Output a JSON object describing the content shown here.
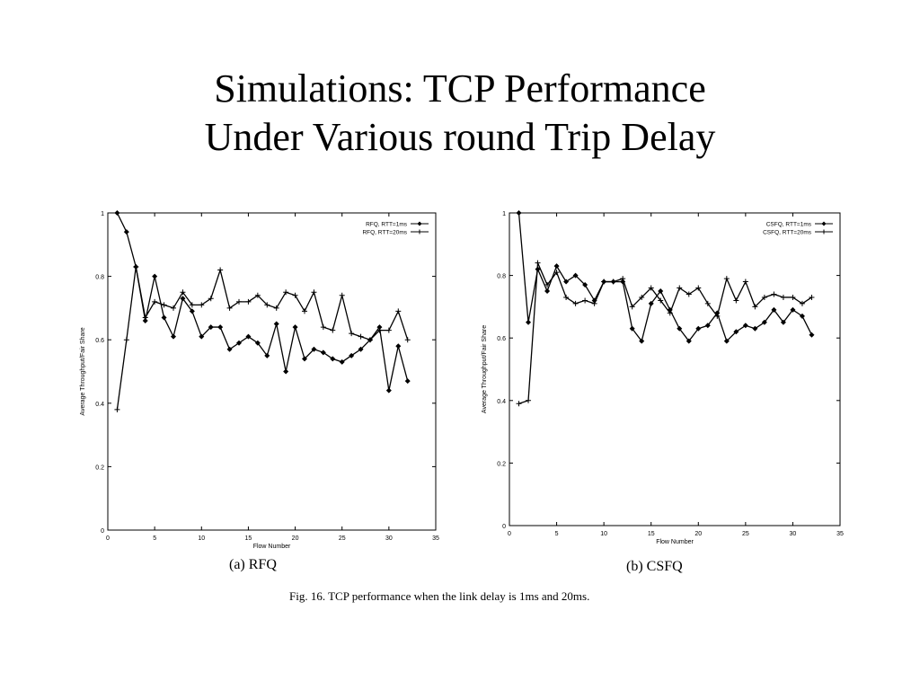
{
  "title": {
    "line1": "Simulations: TCP Performance",
    "line2": "Under Various round Trip Delay"
  },
  "figure_caption": "Fig. 16.  TCP performance when the link delay is 1ms and 20ms.",
  "chart_data": [
    {
      "type": "line",
      "subcaption": "(a) RFQ",
      "xlabel": "Flow Number",
      "ylabel": "Average Throughput/Fair Share",
      "xlim": [
        0,
        35
      ],
      "ylim": [
        0,
        1
      ],
      "xticks": [
        "0",
        "5",
        "10",
        "15",
        "20",
        "25",
        "30",
        "35"
      ],
      "yticks": [
        "0",
        "0.2",
        "0.4",
        "0.6",
        "0.8",
        "1"
      ],
      "legend": "top-right",
      "x": [
        1,
        2,
        3,
        4,
        5,
        6,
        7,
        8,
        9,
        10,
        11,
        12,
        13,
        14,
        15,
        16,
        17,
        18,
        19,
        20,
        21,
        22,
        23,
        24,
        25,
        26,
        27,
        28,
        29,
        30,
        31,
        32
      ],
      "series": [
        {
          "name": "RFQ, RTT=1ms",
          "marker": "diamond",
          "values": [
            1.0,
            0.94,
            0.83,
            0.66,
            0.8,
            0.67,
            0.61,
            0.73,
            0.69,
            0.61,
            0.64,
            0.64,
            0.57,
            0.59,
            0.61,
            0.59,
            0.55,
            0.65,
            0.5,
            0.64,
            0.54,
            0.57,
            0.56,
            0.54,
            0.53,
            0.55,
            0.57,
            0.6,
            0.64,
            0.44,
            0.58,
            0.47
          ]
        },
        {
          "name": "RFQ, RTT=20ms",
          "marker": "plus",
          "values": [
            0.38,
            0.6,
            0.83,
            0.67,
            0.72,
            0.71,
            0.7,
            0.75,
            0.71,
            0.71,
            0.73,
            0.82,
            0.7,
            0.72,
            0.72,
            0.74,
            0.71,
            0.7,
            0.75,
            0.74,
            0.69,
            0.75,
            0.64,
            0.63,
            0.74,
            0.62,
            0.61,
            0.6,
            0.63,
            0.63,
            0.69,
            0.6
          ]
        }
      ]
    },
    {
      "type": "line",
      "subcaption": "(b) CSFQ",
      "xlabel": "Flow Number",
      "ylabel": "Average Throughput/Fair Share",
      "xlim": [
        0,
        35
      ],
      "ylim": [
        0,
        1
      ],
      "xticks": [
        "0",
        "5",
        "10",
        "15",
        "20",
        "25",
        "30",
        "35"
      ],
      "yticks": [
        "0",
        "0.2",
        "0.4",
        "0.6",
        "0.8",
        "1"
      ],
      "legend": "top-right",
      "x": [
        1,
        2,
        3,
        4,
        5,
        6,
        7,
        8,
        9,
        10,
        11,
        12,
        13,
        14,
        15,
        16,
        17,
        18,
        19,
        20,
        21,
        22,
        23,
        24,
        25,
        26,
        27,
        28,
        29,
        30,
        31,
        32
      ],
      "series": [
        {
          "name": "CSFQ, RTT=1ms",
          "marker": "diamond",
          "values": [
            1.0,
            0.65,
            0.82,
            0.75,
            0.83,
            0.78,
            0.8,
            0.77,
            0.72,
            0.78,
            0.78,
            0.78,
            0.63,
            0.59,
            0.71,
            0.75,
            0.69,
            0.63,
            0.59,
            0.63,
            0.64,
            0.68,
            0.59,
            0.62,
            0.64,
            0.63,
            0.65,
            0.69,
            0.65,
            0.69,
            0.67,
            0.61
          ]
        },
        {
          "name": "CSFQ, RTT=20ms",
          "marker": "plus",
          "values": [
            0.39,
            0.4,
            0.84,
            0.77,
            0.81,
            0.73,
            0.71,
            0.72,
            0.71,
            0.78,
            0.78,
            0.79,
            0.7,
            0.73,
            0.76,
            0.72,
            0.68,
            0.76,
            0.74,
            0.76,
            0.71,
            0.67,
            0.79,
            0.72,
            0.78,
            0.7,
            0.73,
            0.74,
            0.73,
            0.73,
            0.71,
            0.73
          ]
        }
      ]
    }
  ]
}
